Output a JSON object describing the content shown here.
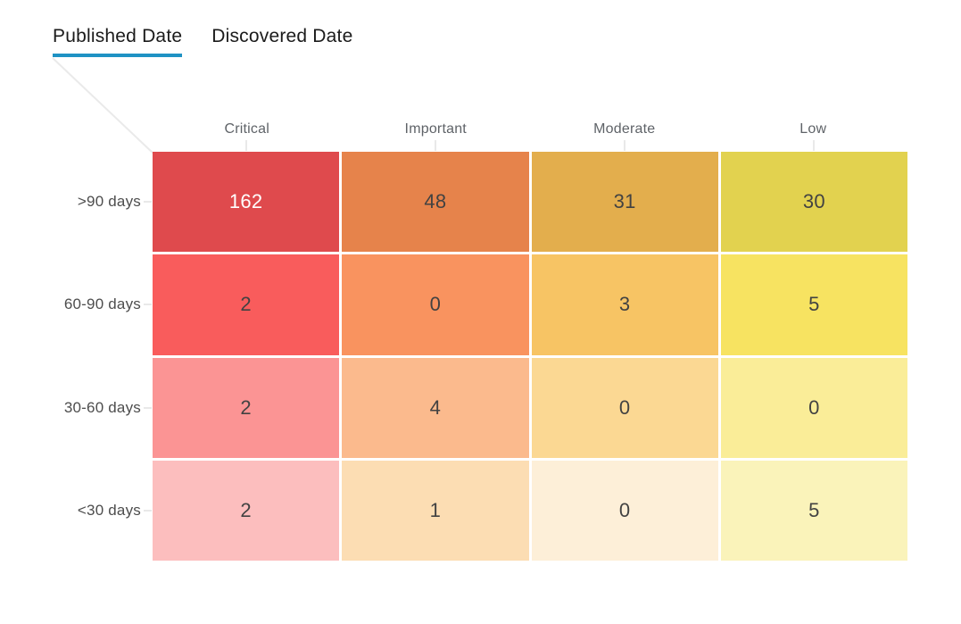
{
  "tabs": [
    {
      "label": "Published Date",
      "active": true
    },
    {
      "label": "Discovered Date",
      "active": false
    }
  ],
  "accent_color": "#1f92c4",
  "chart_data": {
    "type": "heatmap",
    "columns": [
      "Critical",
      "Important",
      "Moderate",
      "Low"
    ],
    "rows": [
      ">90 days",
      "60-90 days",
      "30-60 days",
      "<30 days"
    ],
    "values": [
      [
        162,
        48,
        31,
        30
      ],
      [
        2,
        0,
        3,
        5
      ],
      [
        2,
        4,
        0,
        0
      ],
      [
        2,
        1,
        0,
        5
      ]
    ],
    "cell_colors": [
      [
        "#df4a4d",
        "#e6834b",
        "#e3ae4d",
        "#e2d24f"
      ],
      [
        "#f95c5c",
        "#f9935f",
        "#f7c464",
        "#f7e361"
      ],
      [
        "#fb9494",
        "#fbba8d",
        "#fbd893",
        "#faed98"
      ],
      [
        "#fcbebe",
        "#fcddb3",
        "#fdefd8",
        "#faf3ba"
      ]
    ],
    "value_text_color": "#424242",
    "white_text_cells": [
      [
        0,
        0
      ]
    ],
    "white_text_color": "#ffffff",
    "legend": "none",
    "grid_gap_color": "#ffffff",
    "tick_color": "#e9e9e9"
  }
}
